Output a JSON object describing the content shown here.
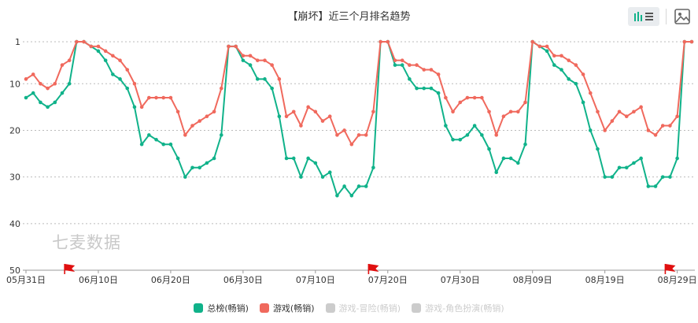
{
  "chart_data": {
    "type": "line",
    "title": "【崩坏】近三个月排名趋势",
    "y_axis": {
      "inverted": true,
      "ylim": [
        1,
        50
      ],
      "ticks": [
        1,
        10,
        20,
        30,
        40,
        50
      ]
    },
    "x_tick_labels": [
      "05月31日",
      "06月10日",
      "06月20日",
      "06月30日",
      "07月10日",
      "07月20日",
      "07月30日",
      "08月09日",
      "08月19日",
      "08月29日"
    ],
    "x_start_date": "05-31",
    "grid": "horizontal dotted",
    "legend_position": "bottom",
    "series": [
      {
        "name": "总榜(畅销)",
        "color": "#10b28a",
        "active": true,
        "values": [
          13,
          12,
          14,
          15,
          14,
          12,
          10,
          1,
          1,
          2,
          3,
          5,
          8,
          9,
          11,
          15,
          23,
          21,
          22,
          23,
          23,
          26,
          30,
          28,
          28,
          27,
          26,
          21,
          2,
          2,
          5,
          6,
          9,
          9,
          11,
          17,
          26,
          26,
          30,
          26,
          27,
          30,
          29,
          34,
          32,
          34,
          32,
          32,
          28,
          1,
          1,
          6,
          6,
          9,
          11,
          11,
          11,
          12,
          19,
          22,
          22,
          21,
          19,
          21,
          24,
          29,
          26,
          26,
          27,
          23,
          1,
          2,
          3,
          6,
          7,
          9,
          10,
          14,
          20,
          24,
          30,
          30,
          28,
          28,
          27,
          26,
          32,
          32,
          30,
          30,
          26,
          1,
          1
        ]
      },
      {
        "name": "游戏(畅销)",
        "color": "#f0695d",
        "active": true,
        "values": [
          9,
          8,
          10,
          11,
          10,
          6,
          5,
          1,
          1,
          2,
          2,
          3,
          4,
          5,
          7,
          10,
          15,
          13,
          13,
          13,
          13,
          16,
          21,
          19,
          18,
          17,
          16,
          11,
          2,
          2,
          4,
          4,
          5,
          5,
          6,
          9,
          17,
          16,
          19,
          15,
          16,
          18,
          17,
          21,
          20,
          23,
          21,
          21,
          16,
          1,
          1,
          5,
          5,
          6,
          6,
          7,
          7,
          8,
          13,
          16,
          14,
          13,
          13,
          13,
          16,
          21,
          17,
          16,
          16,
          14,
          1,
          2,
          2,
          4,
          4,
          5,
          6,
          8,
          12,
          16,
          20,
          18,
          16,
          17,
          16,
          15,
          20,
          21,
          19,
          19,
          17,
          1,
          1
        ]
      },
      {
        "name": "游戏-冒险(畅销)",
        "color": "#cccccc",
        "active": false
      },
      {
        "name": "游戏-角色扮演(畅销)",
        "color": "#cccccc",
        "active": false
      }
    ],
    "markers": {
      "type": "red-flag",
      "dates": [
        "06-06",
        "07-18",
        "08-28"
      ]
    }
  },
  "watermark": "七麦数据",
  "toolbar": {
    "icons": [
      "bar-list-toggle-icon",
      "image-download-icon"
    ]
  }
}
